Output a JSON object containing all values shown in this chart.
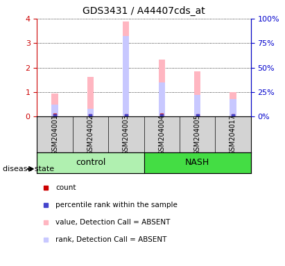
{
  "title": "GDS3431 / A44407cds_at",
  "samples": [
    "GSM204001",
    "GSM204002",
    "GSM204003",
    "GSM204004",
    "GSM204005",
    "GSM204017"
  ],
  "groups": [
    "control",
    "control",
    "control",
    "NASH",
    "NASH",
    "NASH"
  ],
  "group_labels": [
    "control",
    "NASH"
  ],
  "value_absent": [
    0.95,
    1.62,
    3.88,
    2.32,
    1.85,
    1.0
  ],
  "rank_absent": [
    0.12,
    0.08,
    0.82,
    0.35,
    0.22,
    0.18
  ],
  "count_val": [
    0.07,
    0.04,
    0.04,
    0.06,
    0.05,
    0.05
  ],
  "pct_rank_val": [
    0.05,
    0.03,
    0.03,
    0.05,
    0.04,
    0.04
  ],
  "ylim_left": [
    0,
    4
  ],
  "ylim_right": [
    0,
    100
  ],
  "yticks_left": [
    0,
    1,
    2,
    3,
    4
  ],
  "yticks_right": [
    0,
    25,
    50,
    75,
    100
  ],
  "bar_color_value_absent": "#ffb6c1",
  "bar_color_rank_absent": "#c8c8ff",
  "dot_color_count": "#cc0000",
  "dot_color_pctrank": "#4444cc",
  "left_axis_color": "#cc0000",
  "right_axis_color": "#0000cc",
  "bg_sample_row": "#d3d3d3",
  "bg_group_control": "#b0f0b0",
  "bg_group_nash": "#44dd44",
  "group_split_index": 3,
  "bar_width": 0.18
}
